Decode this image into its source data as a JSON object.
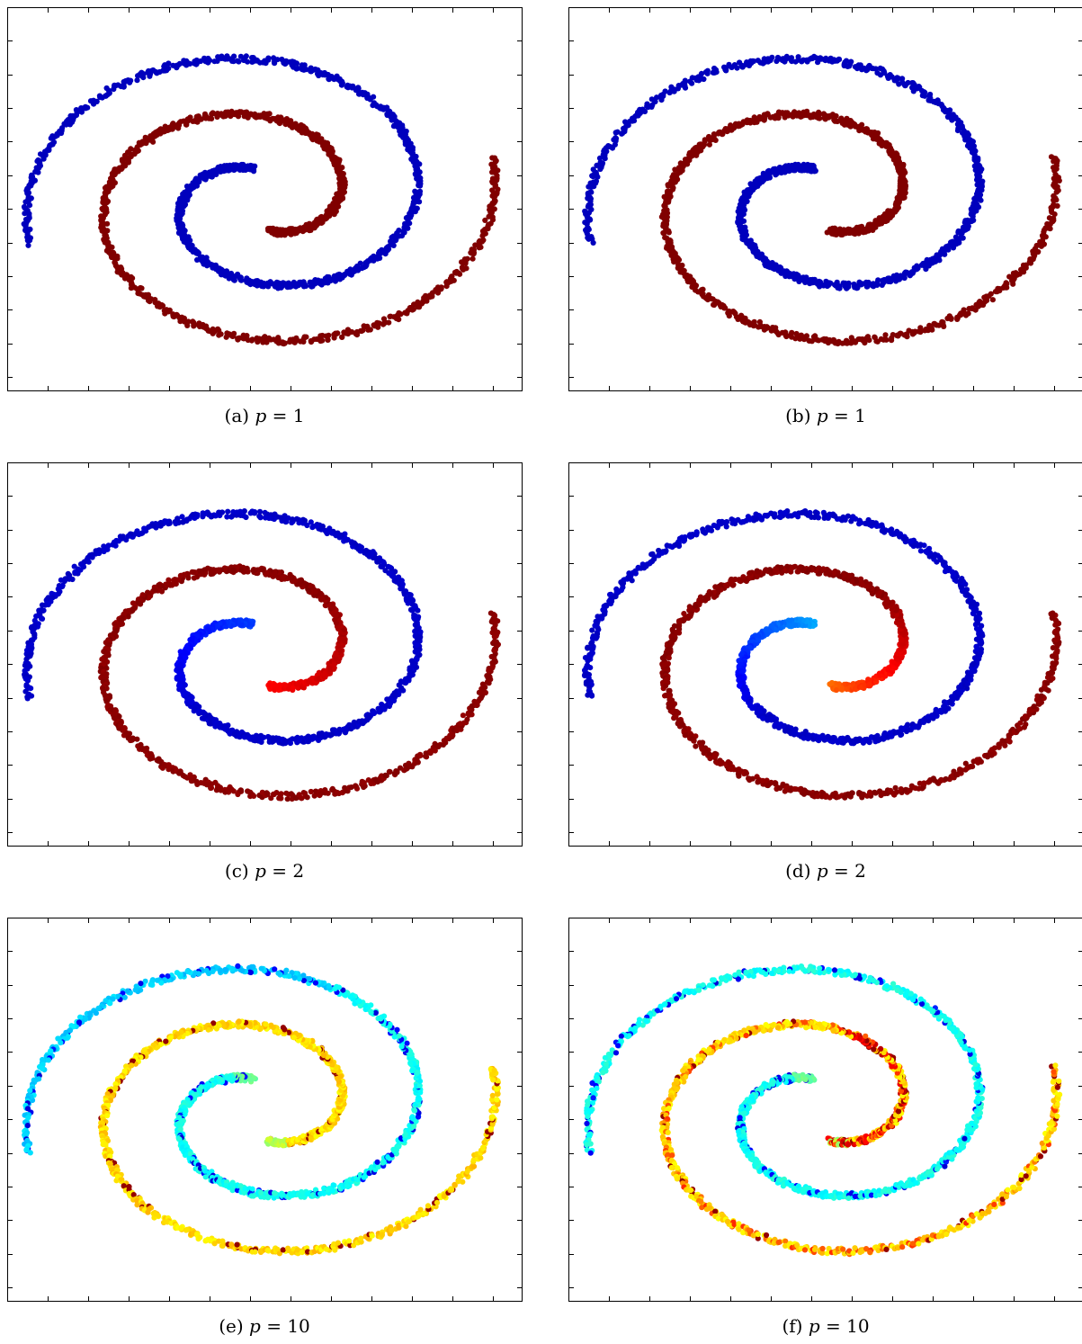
{
  "chart_data": [
    {
      "type": "scatter",
      "caption_label": "(a)",
      "param": "p",
      "value": "= 1",
      "scheme": "binary"
    },
    {
      "type": "scatter",
      "caption_label": "(b)",
      "param": "p",
      "value": "= 1",
      "scheme": "binary"
    },
    {
      "type": "scatter",
      "caption_label": "(c)",
      "param": "p",
      "value": "= 2",
      "scheme": "near-binary"
    },
    {
      "type": "scatter",
      "caption_label": "(d)",
      "param": "p",
      "value": "= 2",
      "scheme": "near-binary-strong"
    },
    {
      "type": "scatter",
      "caption_label": "(e)",
      "param": "p",
      "value": "= 10",
      "scheme": "jet-mixed"
    },
    {
      "type": "scatter",
      "caption_label": "(f)",
      "param": "p",
      "value": "= 10",
      "scheme": "jet-mixed-strong"
    }
  ],
  "colors": {
    "dark_red": "#800000",
    "dark_blue": "#00008f",
    "axis": "#000000"
  }
}
